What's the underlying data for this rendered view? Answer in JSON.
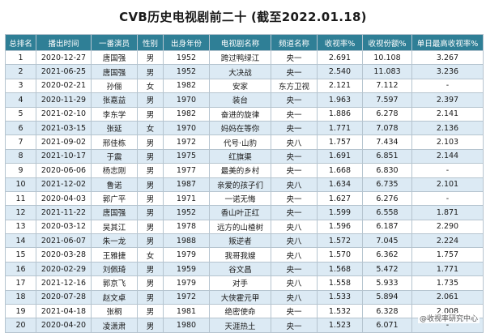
{
  "title": "CVB历史电视剧前二十    (截至2022.01.18)",
  "columns": [
    "总排名",
    "播出时间",
    "一番演员",
    "性别",
    "出身年份",
    "电视剧名称",
    "频道名称",
    "收视率%",
    "收视份额%",
    "单日最高收视率%"
  ],
  "rows": [
    [
      "1",
      "2020-12-27",
      "唐国强",
      "男",
      "1952",
      "跨过鸭绿江",
      "央一",
      "2.691",
      "10.108",
      "3.267"
    ],
    [
      "2",
      "2021-06-25",
      "唐国强",
      "男",
      "1952",
      "大决战",
      "央一",
      "2.540",
      "11.083",
      "3.236"
    ],
    [
      "3",
      "2020-02-21",
      "孙俪",
      "女",
      "1982",
      "安家",
      "东方卫视",
      "2.121",
      "7.112",
      "-"
    ],
    [
      "4",
      "2020-11-29",
      "张嘉益",
      "男",
      "1970",
      "装台",
      "央一",
      "1.963",
      "7.597",
      "2.397"
    ],
    [
      "5",
      "2021-02-10",
      "李东学",
      "男",
      "1982",
      "奋进的旋律",
      "央一",
      "1.886",
      "6.278",
      "2.141"
    ],
    [
      "6",
      "2021-03-15",
      "张延",
      "女",
      "1970",
      "妈妈在等你",
      "央一",
      "1.771",
      "7.078",
      "2.136"
    ],
    [
      "7",
      "2021-09-02",
      "邢佳栋",
      "男",
      "1972",
      "代号·山豹",
      "央八",
      "1.757",
      "7.434",
      "2.103"
    ],
    [
      "8",
      "2021-10-17",
      "于震",
      "男",
      "1975",
      "红旗渠",
      "央一",
      "1.691",
      "6.851",
      "2.144"
    ],
    [
      "9",
      "2020-06-06",
      "杨志刚",
      "男",
      "1977",
      "最美的乡村",
      "央一",
      "1.668",
      "6.830",
      "-"
    ],
    [
      "10",
      "2021-12-02",
      "鲁诺",
      "男",
      "1987",
      "亲爱的孩子们",
      "央八",
      "1.634",
      "6.735",
      "2.101"
    ],
    [
      "11",
      "2020-04-03",
      "郭广平",
      "男",
      "1971",
      "一诺无悔",
      "央一",
      "1.627",
      "6.276",
      "-"
    ],
    [
      "12",
      "2021-11-22",
      "唐国强",
      "男",
      "1952",
      "香山叶正红",
      "央一",
      "1.599",
      "6.558",
      "1.871"
    ],
    [
      "13",
      "2020-03-12",
      "吴其江",
      "男",
      "1978",
      "远方的山楂树",
      "央八",
      "1.596",
      "6.187",
      "2.290"
    ],
    [
      "14",
      "2021-06-07",
      "朱一龙",
      "男",
      "1988",
      "叛逆者",
      "央八",
      "1.572",
      "7.045",
      "2.224"
    ],
    [
      "15",
      "2020-03-28",
      "王雅捷",
      "女",
      "1979",
      "我哥我嫂",
      "央八",
      "1.570",
      "6.362",
      "1.757"
    ],
    [
      "16",
      "2020-02-29",
      "刘佩琦",
      "男",
      "1959",
      "谷文昌",
      "央一",
      "1.568",
      "5.472",
      "1.771"
    ],
    [
      "17",
      "2021-12-16",
      "郭京飞",
      "男",
      "1979",
      "对手",
      "央八",
      "1.558",
      "5.933",
      "1.735"
    ],
    [
      "18",
      "2020-07-28",
      "赵文卓",
      "男",
      "1972",
      "大侠霍元甲",
      "央八",
      "1.533",
      "5.894",
      "2.061"
    ],
    [
      "19",
      "2021-04-18",
      "张桐",
      "男",
      "1981",
      "绝密使命",
      "央一",
      "1.532",
      "6.328",
      "2.008"
    ],
    [
      "20",
      "2020-04-20",
      "凌潇肃",
      "男",
      "1980",
      "天涯热土",
      "央一",
      "1.523",
      "6.071",
      "-"
    ]
  ],
  "watermark": "@收视率研究中心"
}
